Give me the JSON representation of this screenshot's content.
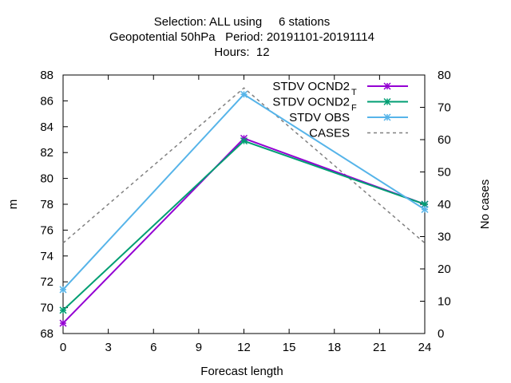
{
  "chart_data": {
    "type": "line",
    "title_lines": [
      "Selection: ALL using     6 stations",
      "Geopotential 50hPa   Period: 20191101-20191114",
      "Hours:  12"
    ],
    "xlabel": "Forecast length",
    "ylabel": "m",
    "y2label": "No cases",
    "x": [
      0,
      12,
      24
    ],
    "xticks": [
      "0",
      "3",
      "6",
      "9",
      "12",
      "15",
      "18",
      "21",
      "24"
    ],
    "xlim": [
      0,
      24
    ],
    "yticks": [
      "68",
      "70",
      "72",
      "74",
      "76",
      "78",
      "80",
      "82",
      "84",
      "86",
      "88"
    ],
    "ylim": [
      68,
      88
    ],
    "y2ticks": [
      "0",
      "10",
      "20",
      "30",
      "40",
      "50",
      "60",
      "70",
      "80"
    ],
    "y2lim": [
      0,
      80
    ],
    "grid": false,
    "legend_position": "top-right",
    "series": [
      {
        "name": "STDV OCND2",
        "subscript": "T",
        "axis": "left",
        "color": "#9400d3",
        "marker": "x-star",
        "values": [
          68.8,
          83.1,
          78.0
        ]
      },
      {
        "name": "STDV OCND2",
        "subscript": "F",
        "axis": "left",
        "color": "#009e73",
        "marker": "x-star",
        "values": [
          69.8,
          82.9,
          78.0
        ]
      },
      {
        "name": "STDV OBS",
        "subscript": "",
        "axis": "left",
        "color": "#56b4e9",
        "marker": "x-star",
        "values": [
          71.4,
          86.5,
          77.6
        ]
      },
      {
        "name": "CASES",
        "subscript": "",
        "axis": "right",
        "color": "#808080",
        "dashed": true,
        "values": [
          28,
          76,
          28
        ]
      }
    ]
  }
}
